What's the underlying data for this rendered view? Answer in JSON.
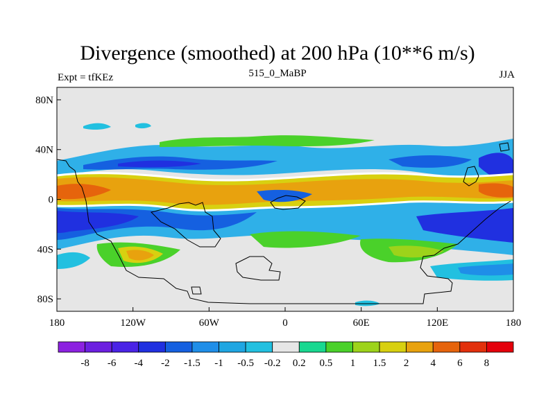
{
  "chart_data": {
    "type": "heatmap",
    "title": "Divergence (smoothed) at 200 hPa (10**6 m/s)",
    "left_string": "Expt = tfKEz",
    "center_string": "515_0_MaBP",
    "right_string": "JJA",
    "x_ticks": [
      "180",
      "120W",
      "60W",
      "0",
      "60E",
      "120E",
      "180"
    ],
    "y_ticks": [
      "80N",
      "40N",
      "0",
      "40S",
      "80S"
    ],
    "colorbar": {
      "levels": [
        "-8",
        "-6",
        "-4",
        "-2",
        "-1.5",
        "-1",
        "-0.5",
        "-0.2",
        "0.2",
        "0.5",
        "1",
        "1.5",
        "2",
        "4",
        "6",
        "8"
      ],
      "colors": [
        "#8c21e0",
        "#6c1fe0",
        "#4a23e6",
        "#2030e0",
        "#1560e0",
        "#1f8ee8",
        "#1fa6e2",
        "#22c0e0",
        "#e6e6e6",
        "#18d890",
        "#4ad12a",
        "#9dd31a",
        "#d8d010",
        "#e8a20e",
        "#e6640c",
        "#e2300c",
        "#e4000b"
      ]
    },
    "colors": {
      "background_missing": "#e6e6e6",
      "land_outline": "#000000"
    }
  }
}
